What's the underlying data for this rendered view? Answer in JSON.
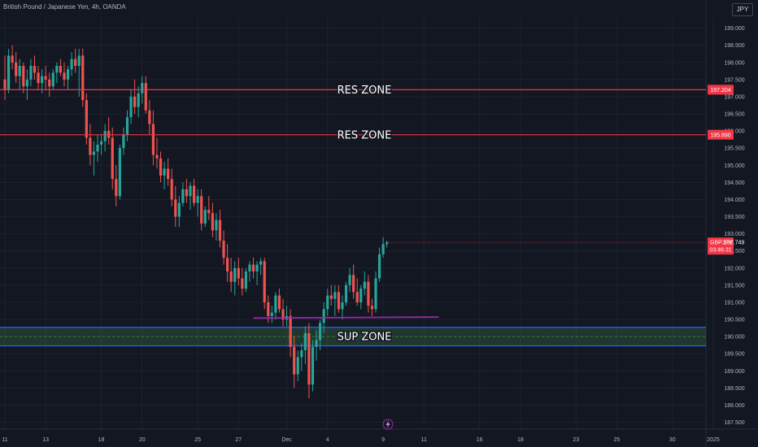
{
  "header": {
    "title": "British Pound / Japanese Yen, 4h, OANDA",
    "currency": "JPY"
  },
  "colors": {
    "bg": "#131722",
    "up": "#26a69a",
    "down": "#ef5350",
    "res": "#f23645",
    "sup": "#2962ff",
    "trend": "#9c27b0"
  },
  "chart_data": {
    "type": "candlestick",
    "ylim": [
      187.3,
      199.3
    ],
    "y_ticks": [
      "199.000",
      "198.500",
      "198.000",
      "197.500",
      "197.000",
      "196.500",
      "196.000",
      "195.500",
      "195.000",
      "194.500",
      "194.000",
      "193.500",
      "193.000",
      "192.500",
      "192.000",
      "191.500",
      "191.000",
      "190.500",
      "190.000",
      "189.500",
      "189.000",
      "188.500",
      "188.000",
      "187.500"
    ],
    "x_ticks": [
      {
        "label": "11",
        "x": 0
      },
      {
        "label": "13",
        "x": 11
      },
      {
        "label": "18",
        "x": 26
      },
      {
        "label": "20",
        "x": 37
      },
      {
        "label": "25",
        "x": 52
      },
      {
        "label": "27",
        "x": 63
      },
      {
        "label": "Dec",
        "x": 76
      },
      {
        "label": "4",
        "x": 87
      },
      {
        "label": "9",
        "x": 102
      },
      {
        "label": "11",
        "x": 113
      },
      {
        "label": "16",
        "x": 128
      },
      {
        "label": "18",
        "x": 139
      },
      {
        "label": "23",
        "x": 154
      },
      {
        "label": "25",
        "x": 165
      },
      {
        "label": "30",
        "x": 180
      },
      {
        "label": "2025",
        "x": 191
      }
    ],
    "res_zones": [
      {
        "label": "RES ZONE",
        "price": 197.204,
        "tag": "197.204"
      },
      {
        "label": "RES ZONE",
        "price": 195.89,
        "tag": "195.890"
      }
    ],
    "sup_zone": {
      "label": "SUP ZONE",
      "top": 190.27,
      "bottom": 189.73,
      "mid": 190.0
    },
    "trendline": {
      "x1": 67,
      "y1": 190.54,
      "x2": 117,
      "y2": 190.57
    },
    "last_price": {
      "symbol": "GBPJPY",
      "price": 192.749,
      "countdown": "03:46:31"
    },
    "ohlc": [
      [
        0,
        197.5,
        198.2,
        196.9,
        197.2
      ],
      [
        1,
        197.2,
        198.4,
        197.1,
        198.2
      ],
      [
        2,
        198.2,
        198.5,
        197.8,
        198.0
      ],
      [
        3,
        198.0,
        198.3,
        197.4,
        197.6
      ],
      [
        4,
        197.6,
        198.1,
        197.2,
        197.9
      ],
      [
        5,
        197.9,
        198.0,
        197.1,
        197.3
      ],
      [
        6,
        197.3,
        197.8,
        196.9,
        197.5
      ],
      [
        7,
        197.5,
        198.1,
        197.3,
        197.9
      ],
      [
        8,
        197.9,
        198.2,
        197.5,
        197.7
      ],
      [
        9,
        197.7,
        197.9,
        197.2,
        197.4
      ],
      [
        10,
        197.4,
        197.8,
        197.1,
        197.6
      ],
      [
        11,
        197.6,
        197.9,
        197.2,
        197.5
      ],
      [
        12,
        197.5,
        197.7,
        197.0,
        197.3
      ],
      [
        13,
        197.3,
        197.8,
        197.2,
        197.7
      ],
      [
        14,
        197.7,
        198.0,
        197.4,
        197.9
      ],
      [
        15,
        197.9,
        198.1,
        197.6,
        197.7
      ],
      [
        16,
        197.7,
        198.0,
        197.3,
        197.5
      ],
      [
        17,
        197.5,
        197.9,
        197.2,
        197.8
      ],
      [
        18,
        197.8,
        198.3,
        197.6,
        198.1
      ],
      [
        19,
        198.1,
        198.4,
        197.7,
        197.9
      ],
      [
        20,
        197.9,
        198.4,
        197.0,
        198.2
      ],
      [
        21,
        198.2,
        198.4,
        196.7,
        196.9
      ],
      [
        22,
        196.9,
        197.1,
        195.6,
        195.8
      ],
      [
        23,
        195.8,
        196.2,
        195.0,
        195.3
      ],
      [
        24,
        195.3,
        195.7,
        194.7,
        195.4
      ],
      [
        25,
        195.4,
        195.9,
        195.1,
        195.6
      ],
      [
        26,
        195.6,
        195.9,
        195.3,
        195.7
      ],
      [
        27,
        195.7,
        196.2,
        195.4,
        196.0
      ],
      [
        28,
        196.0,
        196.4,
        195.6,
        195.8
      ],
      [
        29,
        195.8,
        196.1,
        194.3,
        194.6
      ],
      [
        30,
        194.6,
        195.0,
        193.8,
        194.1
      ],
      [
        31,
        194.1,
        195.6,
        194.0,
        195.5
      ],
      [
        32,
        195.5,
        196.1,
        195.3,
        195.9
      ],
      [
        33,
        195.9,
        196.6,
        195.7,
        196.4
      ],
      [
        34,
        196.4,
        197.2,
        196.2,
        197.0
      ],
      [
        35,
        197.0,
        197.5,
        196.5,
        196.7
      ],
      [
        36,
        196.7,
        197.3,
        196.4,
        197.1
      ],
      [
        37,
        197.1,
        197.6,
        196.8,
        197.4
      ],
      [
        38,
        197.4,
        197.6,
        196.5,
        196.6
      ],
      [
        39,
        196.6,
        196.9,
        195.9,
        196.2
      ],
      [
        40,
        196.2,
        196.6,
        195.0,
        195.3
      ],
      [
        41,
        195.3,
        195.8,
        194.9,
        195.2
      ],
      [
        42,
        195.2,
        195.4,
        194.5,
        194.7
      ],
      [
        43,
        194.7,
        195.1,
        194.3,
        194.9
      ],
      [
        44,
        194.9,
        195.2,
        194.4,
        194.6
      ],
      [
        45,
        194.6,
        194.9,
        193.8,
        194.0
      ],
      [
        46,
        194.0,
        194.4,
        193.2,
        193.5
      ],
      [
        47,
        193.5,
        194.1,
        193.2,
        193.9
      ],
      [
        48,
        193.9,
        194.5,
        193.8,
        194.3
      ],
      [
        49,
        194.3,
        194.6,
        193.9,
        194.1
      ],
      [
        50,
        194.1,
        194.5,
        193.7,
        194.4
      ],
      [
        51,
        194.4,
        194.6,
        193.8,
        193.9
      ],
      [
        52,
        193.9,
        194.3,
        193.5,
        194.1
      ],
      [
        53,
        194.1,
        194.3,
        193.1,
        193.3
      ],
      [
        54,
        193.3,
        193.8,
        193.2,
        193.7
      ],
      [
        55,
        193.7,
        194.1,
        193.4,
        193.6
      ],
      [
        56,
        193.6,
        193.9,
        192.9,
        193.1
      ],
      [
        57,
        193.1,
        193.6,
        192.8,
        193.4
      ],
      [
        58,
        193.4,
        193.7,
        192.6,
        192.8
      ],
      [
        59,
        192.8,
        193.1,
        192.1,
        192.3
      ],
      [
        60,
        192.3,
        192.7,
        191.6,
        191.9
      ],
      [
        61,
        191.9,
        192.3,
        191.3,
        191.6
      ],
      [
        62,
        191.6,
        192.2,
        191.2,
        192.0
      ],
      [
        63,
        192.0,
        192.3,
        191.5,
        191.7
      ],
      [
        64,
        191.7,
        192.0,
        191.2,
        191.4
      ],
      [
        65,
        191.4,
        192.0,
        191.3,
        191.9
      ],
      [
        66,
        191.9,
        192.2,
        191.6,
        192.1
      ],
      [
        67,
        192.1,
        192.3,
        191.7,
        191.9
      ],
      [
        68,
        191.9,
        192.2,
        191.5,
        192.1
      ],
      [
        69,
        192.1,
        192.3,
        191.8,
        192.2
      ],
      [
        70,
        192.2,
        192.3,
        190.8,
        191.0
      ],
      [
        71,
        191.0,
        191.2,
        190.4,
        190.6
      ],
      [
        72,
        190.6,
        190.9,
        190.4,
        190.7
      ],
      [
        73,
        190.7,
        191.3,
        190.5,
        191.2
      ],
      [
        74,
        191.2,
        191.4,
        190.7,
        190.8
      ],
      [
        75,
        190.8,
        191.1,
        190.3,
        190.5
      ],
      [
        76,
        190.5,
        190.9,
        190.3,
        190.6
      ],
      [
        77,
        190.6,
        190.8,
        189.4,
        189.7
      ],
      [
        78,
        189.7,
        190.0,
        188.5,
        188.9
      ],
      [
        79,
        188.9,
        189.6,
        188.7,
        189.4
      ],
      [
        80,
        189.4,
        189.8,
        189.0,
        189.6
      ],
      [
        81,
        189.6,
        190.3,
        189.2,
        190.1
      ],
      [
        82,
        190.1,
        190.4,
        188.2,
        188.6
      ],
      [
        83,
        188.6,
        189.9,
        188.4,
        189.7
      ],
      [
        84,
        189.7,
        190.2,
        189.3,
        189.9
      ],
      [
        85,
        189.9,
        190.5,
        189.6,
        190.4
      ],
      [
        86,
        190.4,
        191.0,
        190.1,
        190.8
      ],
      [
        87,
        190.8,
        191.4,
        190.6,
        191.2
      ],
      [
        88,
        191.2,
        191.5,
        190.9,
        191.1
      ],
      [
        89,
        191.1,
        191.5,
        190.6,
        191.3
      ],
      [
        90,
        191.3,
        191.5,
        190.7,
        190.8
      ],
      [
        91,
        190.8,
        191.2,
        190.5,
        191.0
      ],
      [
        92,
        191.0,
        191.6,
        190.9,
        191.5
      ],
      [
        93,
        191.5,
        192.0,
        191.3,
        191.8
      ],
      [
        94,
        191.8,
        192.1,
        191.1,
        191.3
      ],
      [
        95,
        191.3,
        191.7,
        190.9,
        191.0
      ],
      [
        96,
        191.0,
        191.5,
        190.8,
        191.4
      ],
      [
        97,
        191.4,
        191.9,
        191.2,
        191.6
      ],
      [
        98,
        191.6,
        191.8,
        190.7,
        190.9
      ],
      [
        99,
        190.9,
        191.1,
        190.6,
        190.8
      ],
      [
        100,
        190.8,
        191.9,
        190.7,
        191.7
      ],
      [
        101,
        191.7,
        192.6,
        191.6,
        192.4
      ],
      [
        102,
        192.4,
        192.9,
        192.3,
        192.7
      ],
      [
        103,
        192.7,
        192.8,
        192.6,
        192.75
      ]
    ]
  }
}
